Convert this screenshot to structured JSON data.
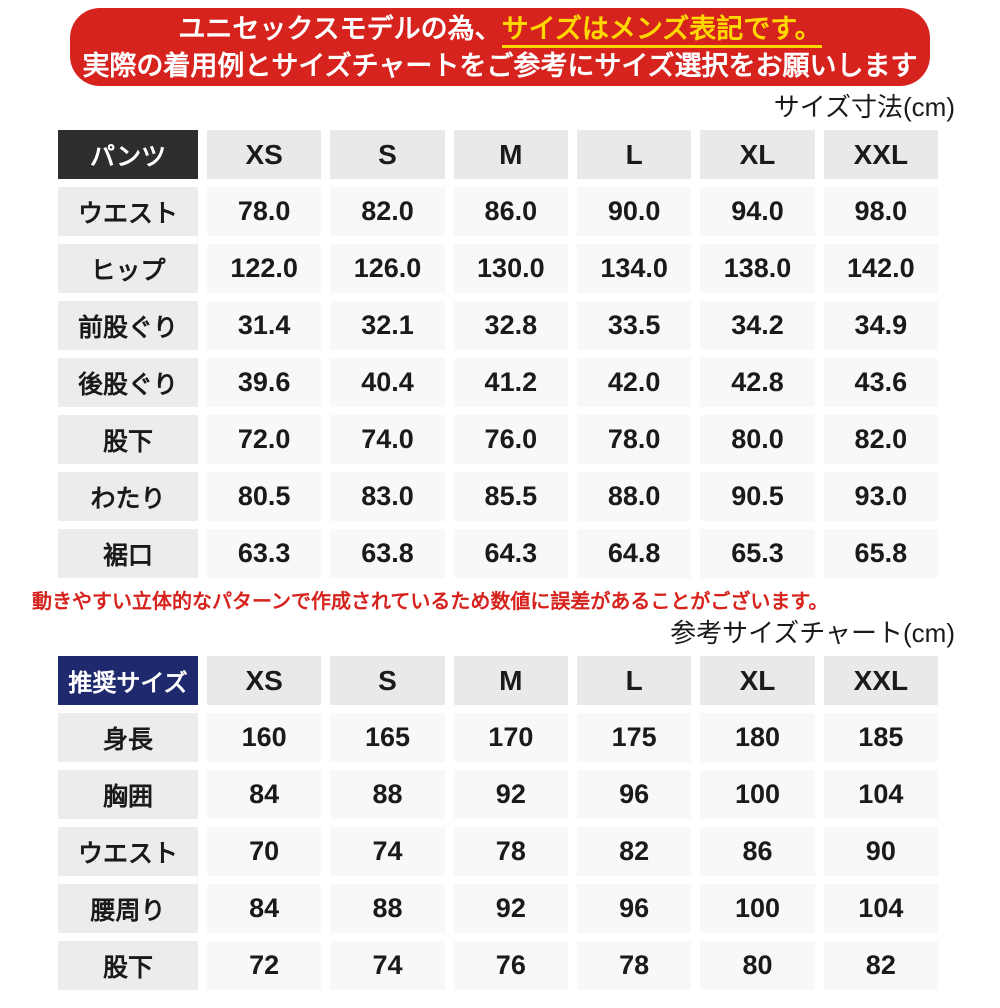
{
  "banner": {
    "line1_white": "ユニセックスモデルの為、",
    "line1_yellow": "サイズはメンズ表記です。",
    "line2": "実際の着用例とサイズチャートをご参考にサイズ選択をお願いします"
  },
  "note": "動きやすい立体的なパターンで作成されているため数値に誤差があることがございます。",
  "colors": {
    "banner_red": "#d7231e",
    "highlight_yellow": "#ffd800",
    "pants_corner_bg": "#2e2e2e",
    "recommended_corner_bg": "#1e2a6d",
    "size_header_cell_bg": "#e9e9e9",
    "row_label_cell_bg": "#ececec",
    "value_cell_bg": "#f8f8f8",
    "note_red": "#d7231e",
    "text_black": "#1a1a1a"
  },
  "chart_data": [
    {
      "type": "table",
      "title": "サイズ寸法(cm)",
      "corner": "パンツ",
      "columns": [
        "XS",
        "S",
        "M",
        "L",
        "XL",
        "XXL"
      ],
      "rows": [
        {
          "label": "ウエスト",
          "values": [
            "78.0",
            "82.0",
            "86.0",
            "90.0",
            "94.0",
            "98.0"
          ]
        },
        {
          "label": "ヒップ",
          "values": [
            "122.0",
            "126.0",
            "130.0",
            "134.0",
            "138.0",
            "142.0"
          ]
        },
        {
          "label": "前股ぐり",
          "values": [
            "31.4",
            "32.1",
            "32.8",
            "33.5",
            "34.2",
            "34.9"
          ]
        },
        {
          "label": "後股ぐり",
          "values": [
            "39.6",
            "40.4",
            "41.2",
            "42.0",
            "42.8",
            "43.6"
          ]
        },
        {
          "label": "股下",
          "values": [
            "72.0",
            "74.0",
            "76.0",
            "78.0",
            "80.0",
            "82.0"
          ]
        },
        {
          "label": "わたり",
          "values": [
            "80.5",
            "83.0",
            "85.5",
            "88.0",
            "90.5",
            "93.0"
          ]
        },
        {
          "label": "裾口",
          "values": [
            "63.3",
            "63.8",
            "64.3",
            "64.8",
            "65.3",
            "65.8"
          ]
        }
      ]
    },
    {
      "type": "table",
      "title": "参考サイズチャート(cm)",
      "corner": "推奨サイズ",
      "columns": [
        "XS",
        "S",
        "M",
        "L",
        "XL",
        "XXL"
      ],
      "rows": [
        {
          "label": "身長",
          "values": [
            "160",
            "165",
            "170",
            "175",
            "180",
            "185"
          ]
        },
        {
          "label": "胸囲",
          "values": [
            "84",
            "88",
            "92",
            "96",
            "100",
            "104"
          ]
        },
        {
          "label": "ウエスト",
          "values": [
            "70",
            "74",
            "78",
            "82",
            "86",
            "90"
          ]
        },
        {
          "label": "腰周り",
          "values": [
            "84",
            "88",
            "92",
            "96",
            "100",
            "104"
          ]
        },
        {
          "label": "股下",
          "values": [
            "72",
            "74",
            "76",
            "78",
            "80",
            "82"
          ]
        }
      ]
    }
  ]
}
